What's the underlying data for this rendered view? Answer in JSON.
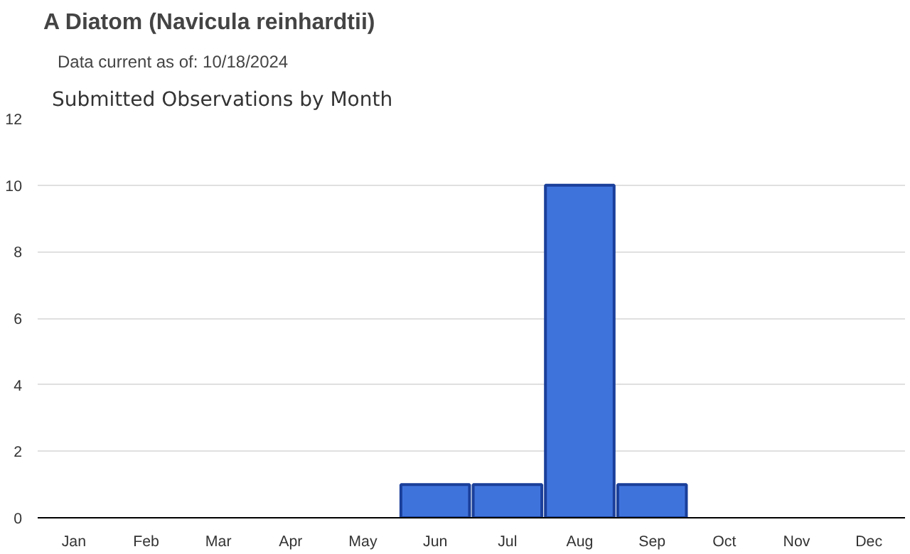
{
  "chart_data": {
    "type": "bar",
    "title": "A Diatom   (Navicula reinhardtii)",
    "subtitle": "Data current as of: 10/18/2024",
    "annotations": [
      "Submitted Observations by Month"
    ],
    "categories": [
      "Jan",
      "Feb",
      "Mar",
      "Apr",
      "May",
      "Jun",
      "Jul",
      "Aug",
      "Sep",
      "Oct",
      "Nov",
      "Dec"
    ],
    "values": [
      0,
      0,
      0,
      0,
      0,
      1,
      1,
      10,
      1,
      0,
      0,
      0
    ],
    "color": "#3f73dc",
    "ylim": [
      0,
      12
    ],
    "yticks": [
      0,
      2,
      4,
      6,
      8,
      10,
      12
    ],
    "grid": "y"
  }
}
